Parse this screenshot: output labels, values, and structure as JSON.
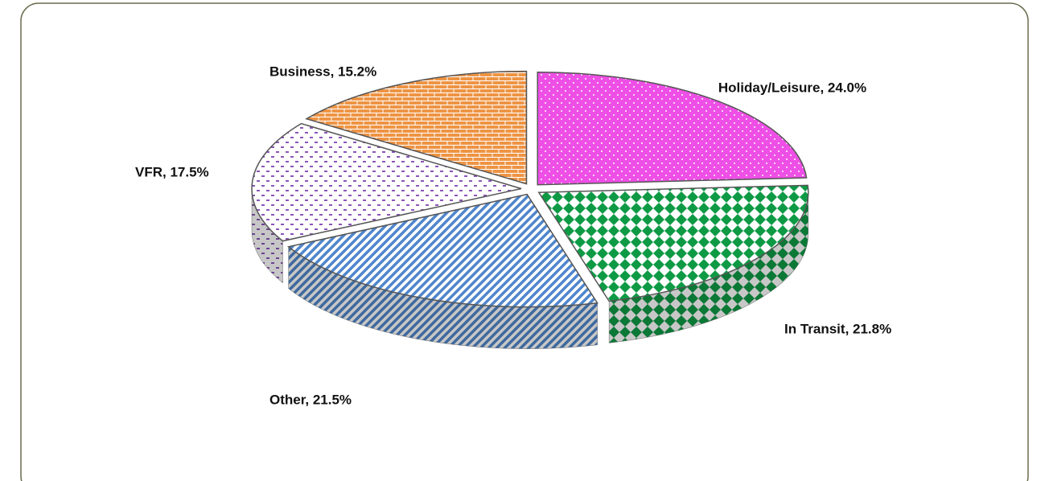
{
  "chart_data": {
    "type": "pie",
    "categories": [
      "Holiday/Leisure",
      "In Transit",
      "Other",
      "VFR",
      "Business"
    ],
    "values": [
      24.0,
      21.8,
      21.5,
      17.5,
      15.2
    ],
    "value_labels": [
      "Holiday/Leisure, 24.0%",
      "In Transit, 21.8%",
      "Other, 21.5%",
      "VFR, 17.5%",
      "Business, 15.2%"
    ],
    "colors": [
      "#ee4fe6",
      "#0e9a45",
      "#4f86cc",
      "#8b55b8",
      "#ee9444"
    ]
  }
}
